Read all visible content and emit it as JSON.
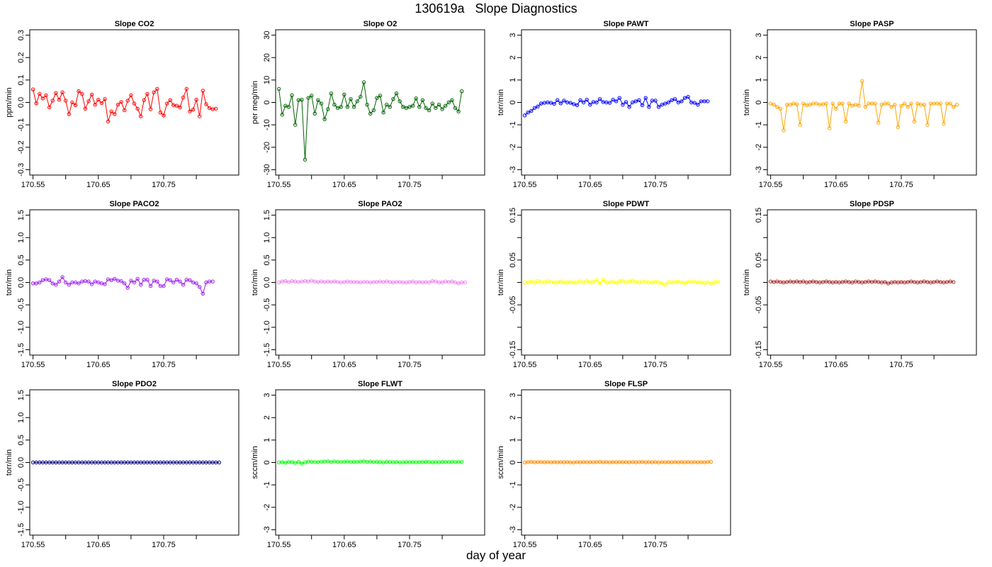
{
  "figure": {
    "title": "130619a   Slope Diagnostics",
    "xlabel": "day of year"
  },
  "chart_data": [
    {
      "type": "line",
      "title": "Slope CO2",
      "ylabel": "ppm/min",
      "color": "#ff0000",
      "xlim": [
        170.545,
        170.865
      ],
      "ylim": [
        -0.3,
        0.3
      ],
      "xticks": [
        170.55,
        170.6,
        170.65,
        170.7,
        170.75,
        170.8
      ],
      "xtick_labels": [
        "170.55",
        "",
        "170.65",
        "",
        "170.75",
        ""
      ],
      "yticks": [
        -0.3,
        -0.2,
        -0.1,
        0.0,
        0.1,
        0.2,
        0.3
      ],
      "ytick_labels": [
        "-0.3",
        "-0.2",
        "-0.1",
        "0.0",
        "0.1",
        "0.2",
        "0.3"
      ],
      "x_start": 170.55,
      "x_step": 0.005,
      "values": [
        0.058,
        -0.004,
        0.038,
        0.018,
        0.032,
        -0.022,
        0.008,
        0.042,
        0.012,
        0.045,
        0.008,
        -0.052,
        0.0,
        -0.012,
        0.05,
        0.038,
        -0.028,
        0.005,
        0.035,
        -0.01,
        0.012,
        -0.003,
        0.015,
        -0.085,
        -0.04,
        -0.052,
        -0.01,
        0.002,
        -0.035,
        0.008,
        0.032,
        -0.005,
        -0.028,
        -0.062,
        0.01,
        0.038,
        -0.03,
        0.045,
        0.06,
        -0.045,
        -0.058,
        -0.005,
        0.01,
        -0.012,
        -0.015,
        -0.022,
        0.022,
        0.06,
        -0.04,
        -0.032,
        0.012,
        -0.062,
        0.052,
        -0.008,
        -0.025,
        -0.03,
        -0.028
      ]
    },
    {
      "type": "line",
      "title": "Slope O2",
      "ylabel": "per meg/min",
      "color": "#006400",
      "xlim": [
        170.545,
        170.865
      ],
      "ylim": [
        -30,
        30
      ],
      "xticks": [
        170.55,
        170.6,
        170.65,
        170.7,
        170.75,
        170.8
      ],
      "xtick_labels": [
        "170.55",
        "",
        "170.65",
        "",
        "170.75",
        ""
      ],
      "yticks": [
        -30,
        -20,
        -10,
        0,
        10,
        20,
        30
      ],
      "ytick_labels": [
        "-30",
        "-20",
        "-10",
        "0",
        "10",
        "20",
        "30"
      ],
      "x_start": 170.55,
      "x_step": 0.005,
      "values": [
        6.0,
        -5.5,
        -1.5,
        -2.0,
        3.2,
        -10.0,
        1.0,
        1.2,
        -25.5,
        2.0,
        3.0,
        -5.0,
        1.0,
        -0.5,
        -7.5,
        -3.0,
        4.0,
        -1.0,
        -2.5,
        -2.0,
        3.5,
        -2.0,
        1.5,
        -2.0,
        0.5,
        2.5,
        9.0,
        -1.0,
        -5.0,
        -3.5,
        2.0,
        3.0,
        -4.5,
        -1.0,
        -2.0,
        1.5,
        4.0,
        0.5,
        -2.0,
        -2.5,
        -2.0,
        -1.5,
        1.8,
        -2.0,
        1.0,
        -2.5,
        -3.5,
        -0.5,
        -2.5,
        -1.0,
        -3.0,
        -1.5,
        0.0,
        1.0,
        -2.5,
        -4.0,
        5.0
      ]
    },
    {
      "type": "line",
      "title": "Slope PAWT",
      "ylabel": "torr/min",
      "color": "#0000ff",
      "xlim": [
        170.545,
        170.865
      ],
      "ylim": [
        -3,
        3
      ],
      "xticks": [
        170.55,
        170.6,
        170.65,
        170.7,
        170.75,
        170.8
      ],
      "xtick_labels": [
        "170.55",
        "",
        "170.65",
        "",
        "170.75",
        ""
      ],
      "yticks": [
        -3,
        -2,
        -1,
        0,
        1,
        2,
        3
      ],
      "ytick_labels": [
        "-3",
        "-2",
        "-1",
        "0",
        "1",
        "2",
        "3"
      ],
      "x_start": 170.55,
      "x_step": 0.005,
      "values": [
        -0.58,
        -0.45,
        -0.38,
        -0.25,
        -0.18,
        -0.05,
        -0.02,
        0.0,
        -0.02,
        -0.06,
        0.1,
        -0.04,
        0.08,
        0.0,
        -0.02,
        -0.08,
        -0.12,
        0.1,
        0.0,
        0.12,
        -0.1,
        0.02,
        0.0,
        0.15,
        0.02,
        0.0,
        -0.02,
        0.12,
        0.05,
        0.2,
        -0.1,
        0.02,
        -0.2,
        0.0,
        0.05,
        0.1,
        -0.12,
        0.2,
        -0.2,
        0.08,
        0.08,
        -0.2,
        -0.1,
        -0.05,
        0.0,
        0.1,
        0.15,
        0.0,
        0.05,
        0.2,
        0.25,
        0.0,
        -0.02,
        -0.1,
        0.05,
        0.05,
        0.05
      ]
    },
    {
      "type": "line",
      "title": "Slope PASP",
      "ylabel": "torr/min",
      "color": "#ffa500",
      "xlim": [
        170.545,
        170.865
      ],
      "ylim": [
        -3,
        3
      ],
      "xticks": [
        170.55,
        170.6,
        170.65,
        170.7,
        170.75,
        170.8
      ],
      "xtick_labels": [
        "170.55",
        "",
        "170.65",
        "",
        "170.75",
        ""
      ],
      "yticks": [
        -3,
        -2,
        -1,
        0,
        1,
        2,
        3
      ],
      "ytick_labels": [
        "-3",
        "-2",
        "-1",
        "0",
        "1",
        "2",
        "3"
      ],
      "x_start": 170.55,
      "x_step": 0.005,
      "values": [
        -0.05,
        -0.1,
        -0.2,
        -0.28,
        -1.25,
        -0.1,
        -0.1,
        -0.05,
        -0.08,
        -1.0,
        -0.05,
        -0.12,
        -0.1,
        -0.05,
        -0.05,
        -0.1,
        -0.08,
        -0.05,
        -1.15,
        -0.05,
        -0.28,
        -0.05,
        -0.05,
        -0.85,
        -0.05,
        -0.15,
        -0.1,
        -0.15,
        0.95,
        -0.2,
        -0.05,
        -0.05,
        -0.05,
        -0.9,
        -0.1,
        -0.05,
        -0.05,
        -0.2,
        -0.1,
        -1.1,
        -0.15,
        -0.05,
        -0.2,
        -0.05,
        -0.85,
        -0.05,
        -0.1,
        -0.1,
        -1.0,
        -0.05,
        -0.05,
        -0.05,
        -0.05,
        -0.95,
        -0.05,
        -0.05,
        -0.2,
        -0.1
      ]
    },
    {
      "type": "line",
      "title": "Slope PACO2",
      "ylabel": "torr/min",
      "color": "#a020f0",
      "xlim": [
        170.545,
        170.865
      ],
      "ylim": [
        -1.5,
        1.5
      ],
      "xticks": [
        170.55,
        170.6,
        170.65,
        170.7,
        170.75,
        170.8
      ],
      "xtick_labels": [
        "170.55",
        "",
        "170.65",
        "",
        "170.75",
        ""
      ],
      "yticks": [
        -1.5,
        -1.0,
        -0.5,
        0.0,
        0.5,
        1.0,
        1.5
      ],
      "ytick_labels": [
        "-1.5",
        "-1.0",
        "-0.5",
        "0.0",
        "0.5",
        "1.0",
        "1.5"
      ],
      "x_start": 170.55,
      "x_step": 0.005,
      "values": [
        -0.02,
        -0.02,
        0.0,
        0.05,
        0.07,
        0.05,
        -0.02,
        -0.05,
        0.02,
        0.12,
        0.0,
        -0.05,
        0.0,
        0.0,
        -0.02,
        0.02,
        0.03,
        0.02,
        -0.04,
        0.02,
        0.0,
        -0.02,
        -0.04,
        0.07,
        0.05,
        0.08,
        0.04,
        0.03,
        -0.02,
        -0.12,
        0.04,
        0.0,
        0.08,
        -0.05,
        0.06,
        0.06,
        -0.08,
        0.04,
        0.02,
        -0.08,
        -0.08,
        0.07,
        0.05,
        0.0,
        0.06,
        0.02,
        -0.05,
        0.06,
        0.05,
        0.0,
        -0.02,
        -0.1,
        -0.25,
        0.0,
        0.02,
        0.02
      ]
    },
    {
      "type": "line",
      "title": "Slope PAO2",
      "ylabel": "torr/min",
      "color": "#ee82ee",
      "xlim": [
        170.545,
        170.865
      ],
      "ylim": [
        -1.5,
        1.5
      ],
      "xticks": [
        170.55,
        170.6,
        170.65,
        170.7,
        170.75,
        170.8
      ],
      "xtick_labels": [
        "170.55",
        "",
        "170.65",
        "",
        "170.75",
        ""
      ],
      "yticks": [
        -1.5,
        -1.0,
        -0.5,
        0.0,
        0.5,
        1.0,
        1.5
      ],
      "ytick_labels": [
        "-1.5",
        "-1.0",
        "-0.5",
        "0.0",
        "0.5",
        "1.0",
        "1.5"
      ],
      "x_start": 170.55,
      "x_step": 0.005,
      "values": [
        0.0,
        0.02,
        0.03,
        0.01,
        0.03,
        0.02,
        0.01,
        0.02,
        0.03,
        0.02,
        0.04,
        0.02,
        0.01,
        0.02,
        0.01,
        0.02,
        0.01,
        0.02,
        0.01,
        0.0,
        0.01,
        0.02,
        0.01,
        0.01,
        0.01,
        0.0,
        0.01,
        0.01,
        0.0,
        0.01,
        0.01,
        0.02,
        0.01,
        0.02,
        0.01,
        0.0,
        0.01,
        0.01,
        0.0,
        0.0,
        0.01,
        0.02,
        0.0,
        0.01,
        0.0,
        0.01,
        0.0,
        0.03,
        0.02,
        0.0,
        0.0,
        0.02,
        0.01,
        0.02,
        0.0,
        -0.02,
        0.0,
        0.0
      ]
    },
    {
      "type": "line",
      "title": "Slope PDWT",
      "ylabel": "torr/min",
      "color": "#ffff00",
      "xlim": [
        170.545,
        170.865
      ],
      "ylim": [
        -0.15,
        0.15
      ],
      "xticks": [
        170.55,
        170.6,
        170.65,
        170.7,
        170.75,
        170.8
      ],
      "xtick_labels": [
        "170.55",
        "",
        "170.65",
        "",
        "170.75",
        ""
      ],
      "yticks": [
        -0.15,
        -0.1,
        -0.05,
        0.0,
        0.05,
        0.1,
        0.15
      ],
      "ytick_labels": [
        "-0.15",
        "",
        "-0.05",
        "",
        "0.05",
        "",
        "0.15"
      ],
      "x_start": 170.55,
      "x_step": 0.005,
      "values": [
        0.0,
        0.0,
        0.002,
        0.0,
        0.003,
        0.001,
        0.0,
        0.003,
        0.001,
        0.0,
        0.0,
        0.002,
        0.0,
        0.0,
        0.001,
        0.0,
        0.0,
        0.003,
        0.0,
        0.004,
        0.0,
        0.001,
        0.006,
        -0.002,
        0.006,
        0.0,
        0.0,
        0.002,
        -0.001,
        0.003,
        0.004,
        0.0,
        0.002,
        0.004,
        0.001,
        0.0,
        0.002,
        0.001,
        0.0,
        0.0,
        0.001,
        0.0,
        -0.002,
        -0.005,
        0.001,
        0.0,
        0.002,
        0.001,
        0.0,
        -0.002,
        0.001,
        0.002,
        0.001,
        0.0,
        0.0,
        -0.001,
        0.0,
        -0.003,
        0.0,
        0.002
      ]
    },
    {
      "type": "line",
      "title": "Slope PDSP",
      "ylabel": "torr/min",
      "color": "#a52a2a",
      "xlim": [
        170.545,
        170.865
      ],
      "ylim": [
        -0.15,
        0.15
      ],
      "xticks": [
        170.55,
        170.6,
        170.65,
        170.7,
        170.75,
        170.8
      ],
      "xtick_labels": [
        "170.55",
        "",
        "170.65",
        "",
        "170.75",
        ""
      ],
      "yticks": [
        -0.15,
        -0.1,
        -0.05,
        0.0,
        0.05,
        0.1,
        0.15
      ],
      "ytick_labels": [
        "-0.15",
        "",
        "-0.05",
        "",
        "0.05",
        "",
        "0.15"
      ],
      "x_start": 170.55,
      "x_step": 0.005,
      "values": [
        0.002,
        0.001,
        0.002,
        0.001,
        0.0,
        0.001,
        0.002,
        0.001,
        0.002,
        0.001,
        0.002,
        0.0,
        0.001,
        0.002,
        0.001,
        0.0,
        0.001,
        0.002,
        0.001,
        0.0,
        0.001,
        0.0,
        0.001,
        0.002,
        0.001,
        0.0,
        0.002,
        0.001,
        0.0,
        0.001,
        0.002,
        0.001,
        0.002,
        0.001,
        0.0,
        0.001,
        -0.002,
        0.0,
        0.001,
        0.0,
        0.001,
        0.0,
        0.001,
        0.002,
        0.001,
        0.0,
        0.001,
        0.002,
        0.001,
        0.0,
        0.001,
        0.002,
        0.001,
        0.0,
        0.001,
        0.002,
        0.001
      ]
    },
    {
      "type": "line",
      "title": "Slope PDO2",
      "ylabel": "torr/min",
      "color": "#000080",
      "xlim": [
        170.545,
        170.865
      ],
      "ylim": [
        -1.5,
        1.5
      ],
      "xticks": [
        170.55,
        170.6,
        170.65,
        170.7,
        170.75,
        170.8
      ],
      "xtick_labels": [
        "170.55",
        "",
        "170.65",
        "",
        "170.75",
        ""
      ],
      "yticks": [
        -1.5,
        -1.0,
        -0.5,
        0.0,
        0.5,
        1.0,
        1.5
      ],
      "ytick_labels": [
        "-1.5",
        "-1.0",
        "-0.5",
        "0.0",
        "0.5",
        "1.0",
        "1.5"
      ],
      "x_start": 170.55,
      "x_step": 0.005,
      "values": [
        0.0,
        0.0,
        0.0,
        0.0,
        0.0,
        0.0,
        0.0,
        0.0,
        0.0,
        0.0,
        0.0,
        0.0,
        0.0,
        0.0,
        0.0,
        0.0,
        0.0,
        0.0,
        0.0,
        0.0,
        0.0,
        0.0,
        0.0,
        0.0,
        0.0,
        0.0,
        0.0,
        0.0,
        0.0,
        0.0,
        0.0,
        0.0,
        0.0,
        0.0,
        0.0,
        0.0,
        0.0,
        0.0,
        0.0,
        0.0,
        0.0,
        0.0,
        0.0,
        0.0,
        0.0,
        0.0,
        0.0,
        0.0,
        0.0,
        0.0,
        0.0,
        0.0,
        0.0,
        0.0,
        0.0,
        0.0,
        0.0,
        0.0
      ]
    },
    {
      "type": "line",
      "title": "Slope FLWT",
      "ylabel": "sccm/min",
      "color": "#00ff00",
      "xlim": [
        170.545,
        170.865
      ],
      "ylim": [
        -3,
        3
      ],
      "xticks": [
        170.55,
        170.6,
        170.65,
        170.7,
        170.75,
        170.8
      ],
      "xtick_labels": [
        "170.55",
        "",
        "170.65",
        "",
        "170.75",
        ""
      ],
      "yticks": [
        -3,
        -2,
        -1,
        0,
        1,
        2,
        3
      ],
      "ytick_labels": [
        "-3",
        "-2",
        "-1",
        "0",
        "1",
        "2",
        "3"
      ],
      "x_start": 170.55,
      "x_step": 0.005,
      "values": [
        0.0,
        0.02,
        -0.01,
        0.03,
        0.02,
        -0.02,
        0.03,
        -0.04,
        0.0,
        0.04,
        0.03,
        0.02,
        0.02,
        0.03,
        0.04,
        0.05,
        0.02,
        0.04,
        0.03,
        0.02,
        0.03,
        0.04,
        0.02,
        0.03,
        0.02,
        0.04,
        0.05,
        0.03,
        0.04,
        0.02,
        0.03,
        0.02,
        0.0,
        0.03,
        0.02,
        0.01,
        0.02,
        0.0,
        0.01,
        0.02,
        0.01,
        0.02,
        0.01,
        0.02,
        0.02,
        0.03,
        0.02,
        0.01,
        0.02,
        0.01,
        0.03,
        0.02,
        0.02,
        0.03,
        0.02,
        0.02,
        0.03
      ]
    },
    {
      "type": "line",
      "title": "Slope FLSP",
      "ylabel": "sccm/min",
      "color": "#ff8c00",
      "xlim": [
        170.545,
        170.865
      ],
      "ylim": [
        -3,
        3
      ],
      "xticks": [
        170.55,
        170.6,
        170.65,
        170.7,
        170.75,
        170.8
      ],
      "xtick_labels": [
        "170.55",
        "",
        "170.65",
        "",
        "170.75",
        ""
      ],
      "yticks": [
        -3,
        -2,
        -1,
        0,
        1,
        2,
        3
      ],
      "ytick_labels": [
        "-3",
        "-2",
        "-1",
        "0",
        "1",
        "2",
        "3"
      ],
      "x_start": 170.55,
      "x_step": 0.005,
      "values": [
        0.0,
        0.02,
        0.03,
        0.01,
        0.02,
        0.02,
        0.01,
        0.02,
        0.01,
        0.02,
        0.01,
        0.02,
        0.01,
        0.02,
        0.01,
        0.0,
        0.02,
        0.01,
        0.02,
        0.01,
        0.02,
        0.01,
        0.02,
        0.03,
        0.01,
        0.02,
        0.01,
        0.02,
        0.01,
        0.02,
        0.01,
        0.02,
        0.01,
        0.02,
        0.01,
        0.02,
        0.03,
        0.01,
        0.02,
        0.01,
        0.02,
        0.0,
        0.02,
        0.01,
        0.02,
        0.01,
        0.02,
        0.01,
        0.02,
        0.01,
        0.02,
        0.01,
        0.02,
        0.01,
        0.02,
        0.01,
        0.02,
        0.03
      ]
    }
  ]
}
